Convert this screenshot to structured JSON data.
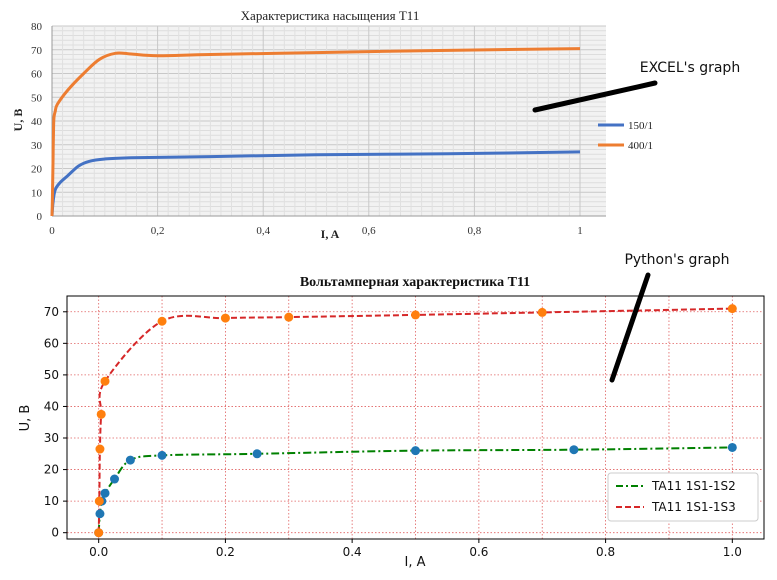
{
  "chart_data": [
    {
      "type": "line",
      "title": "Характеристика насыщения Т11",
      "xlabel": "I, A",
      "ylabel": "U, B",
      "xlim": [
        0,
        1
      ],
      "ylim": [
        0,
        80
      ],
      "x_ticks": [
        "0",
        "0,2",
        "0,4",
        "0,6",
        "0,8",
        "1"
      ],
      "y_ticks": [
        "0",
        "10",
        "20",
        "30",
        "40",
        "50",
        "60",
        "70",
        "80"
      ],
      "legend_position": "right",
      "series": [
        {
          "name": "150/1",
          "color": "#4472c4",
          "x": [
            0,
            0.002,
            0.006,
            0.015,
            0.03,
            0.05,
            0.07,
            0.1,
            0.15,
            0.3,
            0.5,
            0.75,
            1.0
          ],
          "y": [
            0,
            6,
            11,
            14,
            17,
            21,
            23,
            24,
            24.5,
            25,
            25.8,
            26.2,
            27
          ]
        },
        {
          "name": "400/1",
          "color": "#ed7d31",
          "x": [
            0,
            0.001,
            0.002,
            0.003,
            0.004,
            0.006,
            0.01,
            0.03,
            0.06,
            0.09,
            0.12,
            0.15,
            0.2,
            0.3,
            0.5,
            0.7,
            1.0
          ],
          "y": [
            0,
            10,
            25,
            38,
            42,
            44,
            47,
            53,
            60,
            66,
            68.5,
            68.2,
            67.5,
            68,
            68.8,
            69.6,
            70.5
          ]
        }
      ]
    },
    {
      "type": "line",
      "title": "Вольтамперная характеристика Т11",
      "xlabel": "I, A",
      "ylabel": "U, B",
      "xlim": [
        -0.05,
        1.05
      ],
      "ylim": [
        -2,
        75
      ],
      "x_ticks": [
        "0.0",
        "0.2",
        "0.4",
        "0.6",
        "0.8",
        "1.0"
      ],
      "y_ticks": [
        "0",
        "10",
        "20",
        "30",
        "40",
        "50",
        "60",
        "70"
      ],
      "grid": true,
      "legend_position": "lower-right",
      "series": [
        {
          "name": "TA11 1S1-1S2",
          "color": "#008000",
          "marker_color": "#1f77b4",
          "x": [
            0,
            0.002,
            0.005,
            0.01,
            0.025,
            0.05,
            0.1,
            0.25,
            0.5,
            0.75,
            1.0
          ],
          "y": [
            0,
            6,
            10,
            12.5,
            17,
            23,
            24.5,
            25,
            26,
            26.3,
            27
          ]
        },
        {
          "name": "TA11 1S1-1S3",
          "color": "#d62728",
          "marker_color": "#ff7f0e",
          "x": [
            0,
            0.001,
            0.002,
            0.004,
            0.01,
            0.1,
            0.2,
            0.3,
            0.5,
            0.7,
            1.0
          ],
          "y": [
            0,
            10,
            26.5,
            37.5,
            48,
            67,
            68,
            68.3,
            69,
            69.8,
            71
          ]
        }
      ]
    }
  ],
  "annotations": {
    "excel_label": "EXCEL's graph",
    "python_label": "Python's graph"
  }
}
